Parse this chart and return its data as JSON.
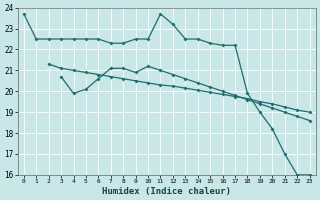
{
  "xlabel": "Humidex (Indice chaleur)",
  "xlim": [
    0,
    23
  ],
  "ylim": [
    16,
    24
  ],
  "yticks": [
    16,
    17,
    18,
    19,
    20,
    21,
    22,
    23,
    24
  ],
  "xticks": [
    0,
    1,
    2,
    3,
    4,
    5,
    6,
    7,
    8,
    9,
    10,
    11,
    12,
    13,
    14,
    15,
    16,
    17,
    18,
    19,
    20,
    21,
    22,
    23
  ],
  "bg_color": "#c8e8e8",
  "line_color": "#1a6e6e",
  "grid_color": "#ffffff",
  "line1_x": [
    0,
    1,
    2,
    3,
    4,
    5,
    6,
    7,
    8,
    9,
    10,
    11,
    12,
    13,
    14,
    15,
    16,
    17,
    18,
    19,
    20,
    21,
    22,
    23
  ],
  "line1_y": [
    23.7,
    22.5,
    22.5,
    22.5,
    22.5,
    22.5,
    22.5,
    22.3,
    22.3,
    22.5,
    22.5,
    23.7,
    23.2,
    22.5,
    22.5,
    22.3,
    22.2,
    22.2,
    19.9,
    19.0,
    18.2,
    17.0,
    16.0,
    16.0
  ],
  "line2_x": [
    2,
    3,
    4,
    5,
    6,
    7,
    8,
    9,
    10,
    11,
    12,
    13,
    14,
    15,
    16,
    17,
    18,
    19,
    20,
    21,
    22,
    23
  ],
  "line2_y": [
    21.3,
    21.1,
    21.0,
    20.9,
    20.8,
    20.7,
    20.6,
    20.5,
    20.4,
    20.3,
    20.25,
    20.15,
    20.05,
    19.95,
    19.85,
    19.75,
    19.65,
    19.5,
    19.4,
    19.25,
    19.1,
    19.0
  ],
  "line3_x": [
    3,
    4,
    5,
    6,
    7,
    8,
    9,
    10,
    11,
    12,
    13,
    14,
    15,
    16,
    17,
    18,
    19,
    20,
    21,
    22,
    23
  ],
  "line3_y": [
    20.7,
    19.9,
    20.1,
    20.6,
    21.1,
    21.1,
    20.9,
    21.2,
    21.0,
    20.8,
    20.6,
    20.4,
    20.2,
    20.0,
    19.8,
    19.6,
    19.4,
    19.2,
    19.0,
    18.8,
    18.6
  ]
}
